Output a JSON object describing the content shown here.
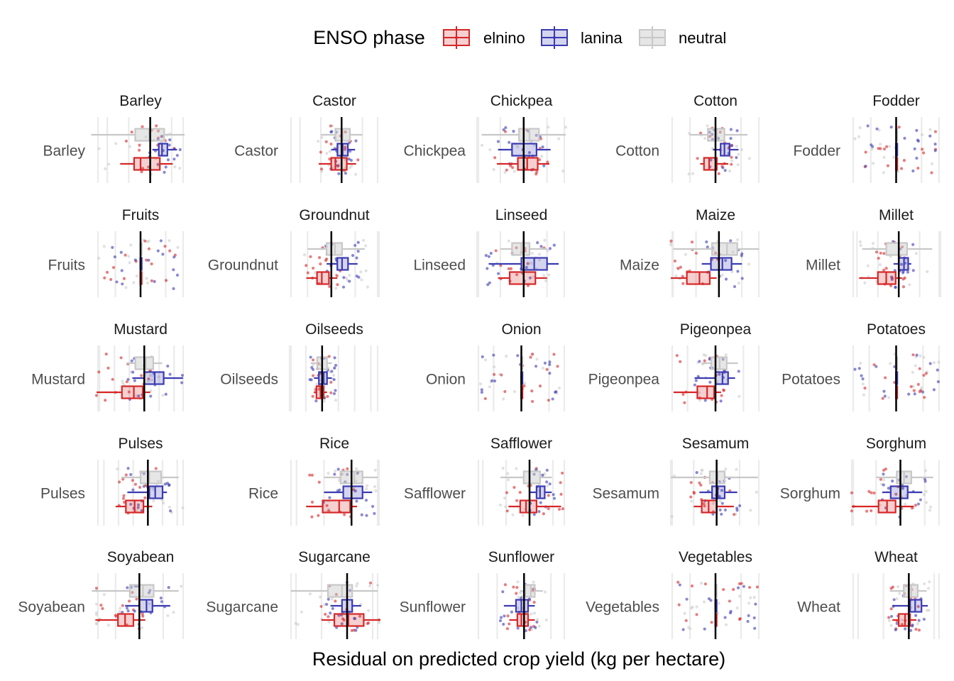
{
  "chart_data": {
    "type": "boxplot",
    "title": "",
    "xlabel": "Residual on predicted crop yield (kg per hectare)",
    "ylabel": "",
    "facet_layout": "5 columns x 5 rows, free x scales",
    "legend": {
      "title": "ENSO phase",
      "position": "top",
      "entries": [
        {
          "name": "elnino",
          "color": "#d62728"
        },
        {
          "name": "lanina",
          "color": "#3b3bb3"
        },
        {
          "name": "neutral",
          "color": "#d9d9d9"
        }
      ]
    },
    "colors": {
      "elnino": "#d62728",
      "lanina": "#3b3bb3",
      "neutral": "#c8c8c8",
      "gridline": "#ebebeb",
      "zero_line": "#000000"
    },
    "grid": true,
    "reference_line_at_zero": true,
    "axis_tick_labels_x": "none shown",
    "facets": [
      {
        "crop": "Barley",
        "x_range": [
          -5,
          3.2
        ],
        "elnino": {
          "q1": -1.5,
          "median": -0.9,
          "q3": 0.9,
          "whisker_low": -2.8,
          "whisker_high": 2.1
        },
        "lanina": {
          "q1": 0.8,
          "median": 1.1,
          "q3": 1.6,
          "whisker_low": 0.2,
          "whisker_high": 2.5
        },
        "neutral": {
          "q1": -1.4,
          "median": -0.1,
          "q3": 1.3,
          "whisker_low": -5.5,
          "whisker_high": 3.2
        }
      },
      {
        "crop": "Castor",
        "x_range": [
          -5,
          3.6
        ],
        "elnino": {
          "q1": -1.0,
          "median": -0.6,
          "q3": 0.5,
          "whisker_low": -2.2,
          "whisker_high": 1.4
        },
        "lanina": {
          "q1": -0.4,
          "median": 0.1,
          "q3": 0.6,
          "whisker_low": -1.0,
          "whisker_high": 1.3
        },
        "neutral": {
          "q1": -0.6,
          "median": 0.1,
          "q3": 0.8,
          "whisker_low": -2.0,
          "whisker_high": 2.0
        }
      },
      {
        "crop": "Chickpea",
        "x_range": [
          -4,
          3.6
        ],
        "elnino": {
          "q1": -0.5,
          "median": 0.3,
          "q3": 1.2,
          "whisker_low": -2.3,
          "whisker_high": 2.2
        },
        "lanina": {
          "q1": -1.0,
          "median": 0.0,
          "q3": 1.1,
          "whisker_low": -2.2,
          "whisker_high": 2.3
        },
        "neutral": {
          "q1": -0.4,
          "median": 0.5,
          "q3": 1.3,
          "whisker_low": -3.6,
          "whisker_high": 3.6
        }
      },
      {
        "crop": "Cotton",
        "x_range": [
          -3.5,
          3.5
        ],
        "elnino": {
          "q1": -0.9,
          "median": -0.5,
          "q3": 0.1,
          "whisker_low": -1.2,
          "whisker_high": 1.0
        },
        "lanina": {
          "q1": 0.4,
          "median": 0.7,
          "q3": 1.1,
          "whisker_low": -0.2,
          "whisker_high": 1.8
        },
        "neutral": {
          "q1": -0.6,
          "median": 0.1,
          "q3": 0.7,
          "whisker_low": -2.0,
          "whisker_high": 2.5
        }
      },
      {
        "crop": "Fodder",
        "x_range": [
          -3.5,
          3.5
        ],
        "elnino": {
          "q1": -0.02,
          "median": 0.0,
          "q3": 0.02,
          "whisker_low": -0.05,
          "whisker_high": 0.05
        },
        "lanina": {
          "q1": -0.02,
          "median": 0.0,
          "q3": 0.02,
          "whisker_low": -0.05,
          "whisker_high": 0.05
        },
        "neutral": {
          "q1": -0.02,
          "median": 0.0,
          "q3": 0.02,
          "whisker_low": -0.05,
          "whisker_high": 0.05
        }
      },
      {
        "crop": "Fruits",
        "x_range": [
          -3.5,
          3.5
        ],
        "elnino": {
          "q1": -0.02,
          "median": 0.0,
          "q3": 0.02,
          "whisker_low": -0.05,
          "whisker_high": 0.05
        },
        "lanina": {
          "q1": -0.02,
          "median": 0.0,
          "q3": 0.02,
          "whisker_low": -0.05,
          "whisker_high": 0.05
        },
        "neutral": {
          "q1": -0.02,
          "median": 0.0,
          "q3": 0.02,
          "whisker_low": -0.05,
          "whisker_high": 0.05
        }
      },
      {
        "crop": "Groundnut",
        "x_range": [
          -3.5,
          4
        ],
        "elnino": {
          "q1": -1.2,
          "median": -0.8,
          "q3": -0.2,
          "whisker_low": -2.1,
          "whisker_high": 0.5
        },
        "lanina": {
          "q1": 0.5,
          "median": 0.9,
          "q3": 1.4,
          "whisker_low": -0.4,
          "whisker_high": 2.2
        },
        "neutral": {
          "q1": -0.4,
          "median": 0.3,
          "q3": 0.9,
          "whisker_low": -2.0,
          "whisker_high": 2.8
        }
      },
      {
        "crop": "Linseed",
        "x_range": [
          -4,
          3.6
        ],
        "elnino": {
          "q1": -1.2,
          "median": 0.0,
          "q3": 1.0,
          "whisker_low": -2.2,
          "whisker_high": 2.0
        },
        "lanina": {
          "q1": -0.2,
          "median": 0.9,
          "q3": 2.0,
          "whisker_low": -3.0,
          "whisker_high": 3.0
        },
        "neutral": {
          "q1": -1.0,
          "median": -0.2,
          "q3": 0.5,
          "whisker_low": -2.0,
          "whisker_high": 2.0
        }
      },
      {
        "crop": "Maize",
        "x_range": [
          -4.2,
          3.6
        ],
        "elnino": {
          "q1": -2.8,
          "median": -1.7,
          "q3": -0.8,
          "whisker_low": -4.2,
          "whisker_high": -0.2
        },
        "lanina": {
          "q1": -0.7,
          "median": 0.3,
          "q3": 1.1,
          "whisker_low": -1.5,
          "whisker_high": 2.0
        },
        "neutral": {
          "q1": -0.6,
          "median": 0.7,
          "q3": 1.6,
          "whisker_low": -4.0,
          "whisker_high": 3.5
        }
      },
      {
        "crop": "Millet",
        "x_range": [
          -4.5,
          4
        ],
        "elnino": {
          "q1": -2.0,
          "median": -1.2,
          "q3": -0.3,
          "whisker_low": -3.8,
          "whisker_high": 0.3
        },
        "lanina": {
          "q1": 0.0,
          "median": 0.5,
          "q3": 0.9,
          "whisker_low": -0.5,
          "whisker_high": 1.2
        },
        "neutral": {
          "q1": -1.2,
          "median": 0.0,
          "q3": 0.8,
          "whisker_low": -3.5,
          "whisker_high": 3.2
        }
      },
      {
        "crop": "Mustard",
        "x_range": [
          -3.2,
          2.7
        ],
        "elnino": {
          "q1": -1.5,
          "median": -0.7,
          "q3": -0.1,
          "whisker_low": -3.2,
          "whisker_high": 0.4
        },
        "lanina": {
          "q1": 0.0,
          "median": 0.7,
          "q3": 1.3,
          "whisker_low": -0.8,
          "whisker_high": 2.6
        },
        "neutral": {
          "q1": -0.6,
          "median": 0.1,
          "q3": 0.6,
          "whisker_low": -1.2,
          "whisker_high": 1.2
        }
      },
      {
        "crop": "Oilseeds",
        "x_range": [
          -2,
          3.5
        ],
        "elnino": {
          "q1": -0.35,
          "median": -0.1,
          "q3": 0.1,
          "whisker_low": -0.5,
          "whisker_high": 0.3
        },
        "lanina": {
          "q1": -0.2,
          "median": 0.1,
          "q3": 0.3,
          "whisker_low": -0.5,
          "whisker_high": 0.6
        },
        "neutral": {
          "q1": -0.3,
          "median": 0.0,
          "q3": 0.3,
          "whisker_low": -0.7,
          "whisker_high": 0.6
        }
      },
      {
        "crop": "Onion",
        "x_range": [
          -3.2,
          3.2
        ],
        "elnino": {
          "q1": -0.02,
          "median": 0.0,
          "q3": 0.02,
          "whisker_low": -0.05,
          "whisker_high": 0.05
        },
        "lanina": {
          "q1": -0.02,
          "median": 0.0,
          "q3": 0.02,
          "whisker_low": -0.05,
          "whisker_high": 0.05
        },
        "neutral": {
          "q1": -0.02,
          "median": 0.0,
          "q3": 0.02,
          "whisker_low": -0.05,
          "whisker_high": 0.05
        }
      },
      {
        "crop": "Pigeonpea",
        "x_range": [
          -3.2,
          3.2
        ],
        "elnino": {
          "q1": -1.3,
          "median": -0.6,
          "q3": -0.1,
          "whisker_low": -3.0,
          "whisker_high": 0.4
        },
        "lanina": {
          "q1": 0.0,
          "median": 0.5,
          "q3": 0.9,
          "whisker_low": -1.5,
          "whisker_high": 1.4
        },
        "neutral": {
          "q1": -0.3,
          "median": 0.3,
          "q3": 0.8,
          "whisker_low": -1.0,
          "whisker_high": 1.6
        }
      },
      {
        "crop": "Potatoes",
        "x_range": [
          -3.3,
          3.3
        ],
        "elnino": {
          "q1": -0.02,
          "median": 0.0,
          "q3": 0.02,
          "whisker_low": -0.05,
          "whisker_high": 0.05
        },
        "lanina": {
          "q1": -0.02,
          "median": 0.0,
          "q3": 0.02,
          "whisker_low": -0.05,
          "whisker_high": 0.05
        },
        "neutral": {
          "q1": -0.02,
          "median": 0.0,
          "q3": 0.02,
          "whisker_low": -0.05,
          "whisker_high": 0.05
        }
      },
      {
        "crop": "Pulses",
        "x_range": [
          -3.5,
          2.5
        ],
        "elnino": {
          "q1": -1.5,
          "median": -0.9,
          "q3": -0.3,
          "whisker_low": -2.2,
          "whisker_high": 0.3
        },
        "lanina": {
          "q1": 0.1,
          "median": 0.5,
          "q3": 1.0,
          "whisker_low": -1.4,
          "whisker_high": 1.3
        },
        "neutral": {
          "q1": -0.5,
          "median": 0.1,
          "q3": 0.9,
          "whisker_low": -1.8,
          "whisker_high": 2.1
        }
      },
      {
        "crop": "Rice",
        "x_range": [
          -4.5,
          2
        ],
        "elnino": {
          "q1": -2.1,
          "median": -0.9,
          "q3": -0.1,
          "whisker_low": -3.3,
          "whisker_high": 0.4
        },
        "lanina": {
          "q1": -0.6,
          "median": 0.0,
          "q3": 0.8,
          "whisker_low": -2.0,
          "whisker_high": 1.5
        },
        "neutral": {
          "q1": -0.8,
          "median": 0.2,
          "q3": 0.8,
          "whisker_low": -2.0,
          "whisker_high": 1.9
        }
      },
      {
        "crop": "Safflower",
        "x_range": [
          -4.5,
          3.1
        ],
        "elnino": {
          "q1": -0.8,
          "median": -0.3,
          "q3": 0.6,
          "whisker_low": -1.8,
          "whisker_high": 2.7
        },
        "lanina": {
          "q1": 0.6,
          "median": 0.9,
          "q3": 1.3,
          "whisker_low": 0.0,
          "whisker_high": 1.9
        },
        "neutral": {
          "q1": -0.5,
          "median": 0.0,
          "q3": 0.9,
          "whisker_low": -2.5,
          "whisker_high": 1.9
        }
      },
      {
        "crop": "Sesamum",
        "x_range": [
          -4,
          3.8
        ],
        "elnino": {
          "q1": -1.3,
          "median": -0.7,
          "q3": 0.0,
          "whisker_low": -2.0,
          "whisker_high": 1.5
        },
        "lanina": {
          "q1": -0.4,
          "median": 0.1,
          "q3": 0.7,
          "whisker_low": -1.5,
          "whisker_high": 1.8
        },
        "neutral": {
          "q1": -0.6,
          "median": 0.1,
          "q3": 0.7,
          "whisker_low": -4.0,
          "whisker_high": 3.6
        }
      },
      {
        "crop": "Sorghum",
        "x_range": [
          -4,
          3.3
        ],
        "elnino": {
          "q1": -1.8,
          "median": -1.1,
          "q3": -0.4,
          "whisker_low": -4.0,
          "whisker_high": 1.1
        },
        "lanina": {
          "q1": -0.8,
          "median": 0.0,
          "q3": 0.6,
          "whisker_low": -1.5,
          "whisker_high": 1.8
        },
        "neutral": {
          "q1": -0.3,
          "median": 0.3,
          "q3": 0.9,
          "whisker_low": -2.0,
          "whisker_high": 2.7
        }
      },
      {
        "crop": "Soyabean",
        "x_range": [
          -3.6,
          3.8
        ],
        "elnino": {
          "q1": -1.8,
          "median": -1.2,
          "q3": -0.5,
          "whisker_low": -3.7,
          "whisker_high": 0.5
        },
        "lanina": {
          "q1": 0.0,
          "median": 0.6,
          "q3": 1.1,
          "whisker_low": -1.2,
          "whisker_high": 2.6
        },
        "neutral": {
          "q1": -0.8,
          "median": 0.3,
          "q3": 1.2,
          "whisker_low": -4.0,
          "whisker_high": 3.3
        }
      },
      {
        "crop": "Sugarcane",
        "x_range": [
          -4.5,
          2.5
        ],
        "elnino": {
          "q1": -1.0,
          "median": 0.1,
          "q3": 1.3,
          "whisker_low": -2.0,
          "whisker_high": 2.6
        },
        "lanina": {
          "q1": -0.4,
          "median": 0.0,
          "q3": 0.4,
          "whisker_low": -1.3,
          "whisker_high": 1.1
        },
        "neutral": {
          "q1": -1.5,
          "median": -0.4,
          "q3": 0.4,
          "whisker_low": -4.4,
          "whisker_high": 2.4
        }
      },
      {
        "crop": "Sunflower",
        "x_range": [
          -3.5,
          3.1
        ],
        "elnino": {
          "q1": -0.5,
          "median": -0.2,
          "q3": 0.3,
          "whisker_low": -1.1,
          "whisker_high": 0.8
        },
        "lanina": {
          "q1": -0.6,
          "median": -0.2,
          "q3": 0.3,
          "whisker_low": -1.5,
          "whisker_high": 0.8
        },
        "neutral": {
          "q1": 0.1,
          "median": 0.5,
          "q3": 0.8,
          "whisker_low": -0.3,
          "whisker_high": 1.4
        }
      },
      {
        "crop": "Vegetables",
        "x_range": [
          -3.5,
          3.5
        ],
        "elnino": {
          "q1": -0.02,
          "median": 0.0,
          "q3": 0.02,
          "whisker_low": -0.05,
          "whisker_high": 0.05
        },
        "lanina": {
          "q1": -0.02,
          "median": 0.0,
          "q3": 0.02,
          "whisker_low": -0.05,
          "whisker_high": 0.05
        },
        "neutral": {
          "q1": -0.02,
          "median": 0.0,
          "q3": 0.02,
          "whisker_low": -0.05,
          "whisker_high": 0.05
        }
      },
      {
        "crop": "Wheat",
        "x_range": [
          -4.5,
          2.5
        ],
        "elnino": {
          "q1": -0.8,
          "median": -0.3,
          "q3": 0.1,
          "whisker_low": -1.3,
          "whisker_high": 0.6
        },
        "lanina": {
          "q1": 0.1,
          "median": 0.5,
          "q3": 1.0,
          "whisker_low": -1.3,
          "whisker_high": 1.5
        },
        "neutral": {
          "q1": -0.4,
          "median": 0.2,
          "q3": 0.7,
          "whisker_low": -1.5,
          "whisker_high": 1.4
        }
      }
    ]
  }
}
